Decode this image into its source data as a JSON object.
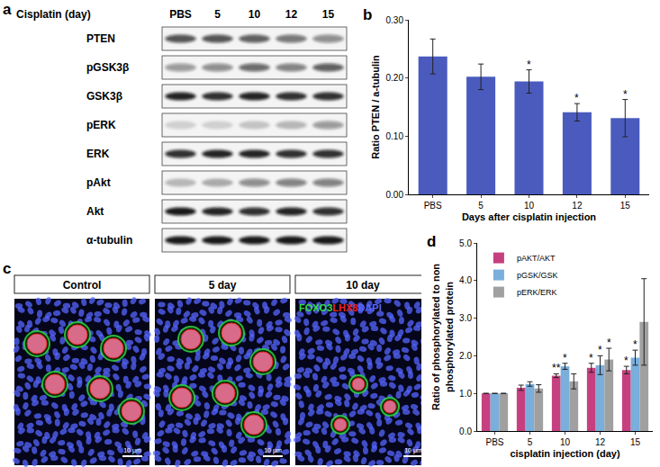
{
  "blot": {
    "label": "a",
    "header": "Cisplatin (day)",
    "lanes": [
      "PBS",
      "5",
      "10",
      "12",
      "15"
    ],
    "rows": [
      {
        "name": "PTEN",
        "intensity": [
          0.7,
          0.7,
          0.65,
          0.55,
          0.45
        ]
      },
      {
        "name": "pGSK3β",
        "intensity": [
          0.4,
          0.45,
          0.6,
          0.5,
          0.65
        ]
      },
      {
        "name": "GSK3β",
        "intensity": [
          0.9,
          0.85,
          0.9,
          0.85,
          0.85
        ]
      },
      {
        "name": "pERK",
        "intensity": [
          0.15,
          0.15,
          0.2,
          0.25,
          0.4
        ]
      },
      {
        "name": "ERK",
        "intensity": [
          0.85,
          0.9,
          0.9,
          0.85,
          0.85
        ]
      },
      {
        "name": "pAkt",
        "intensity": [
          0.25,
          0.3,
          0.45,
          0.5,
          0.5
        ]
      },
      {
        "name": "Akt",
        "intensity": [
          0.95,
          0.9,
          0.85,
          0.9,
          0.85
        ]
      },
      {
        "name": "α-tubulin",
        "intensity": [
          0.95,
          0.95,
          0.95,
          0.95,
          0.95
        ]
      }
    ]
  },
  "microscopy": {
    "label": "c",
    "panels": [
      "Control",
      "5 day",
      "10 day"
    ],
    "stains": [
      {
        "name": "FOXO3",
        "color": "#33dd44"
      },
      {
        "name": "LHX8",
        "color": "#ee2222"
      },
      {
        "name": "DAPI",
        "color": "#5566ff"
      }
    ],
    "scale_bar": "10 μm"
  },
  "chart_data": [
    {
      "label": "b",
      "type": "bar",
      "categories": [
        "PBS",
        "5",
        "10",
        "12",
        "15"
      ],
      "values": [
        0.237,
        0.202,
        0.194,
        0.141,
        0.131
      ],
      "errors": [
        0.03,
        0.022,
        0.02,
        0.015,
        0.032
      ],
      "color": "#4a5bbd",
      "x_label": "Days after cisplatin injection",
      "y_label": "Ratio PTEN / a-tubulin",
      "ylim": [
        0,
        0.3
      ],
      "yticks": [
        {
          "value": 0,
          "label": "0.00"
        },
        {
          "value": 0.1,
          "label": "0.10"
        },
        {
          "value": 0.2,
          "label": "0.20"
        },
        {
          "value": 0.3,
          "label": "0.30"
        }
      ],
      "grid": false,
      "annotations": [
        {
          "category": "10",
          "text": "*"
        },
        {
          "category": "12",
          "text": "*"
        },
        {
          "category": "15",
          "text": "*"
        }
      ]
    },
    {
      "label": "d",
      "type": "bar",
      "categories": [
        "PBS",
        "5",
        "10",
        "12",
        "15"
      ],
      "series": [
        {
          "name": "pAKT/AKT",
          "color": "#c6407f",
          "values": [
            1,
            1.15,
            1.47,
            1.68,
            1.62
          ],
          "errors": [
            0,
            0.07,
            0.05,
            0.12,
            0.1
          ]
        },
        {
          "name": "pGSK/GSK",
          "color": "#7aaedb",
          "values": [
            1,
            1.25,
            1.72,
            1.75,
            1.95
          ],
          "errors": [
            0,
            0.06,
            0.08,
            0.25,
            0.2
          ]
        },
        {
          "name": "pERK/ERK",
          "color": "#a0a0a0",
          "values": [
            1,
            1.13,
            1.32,
            1.9,
            2.9
          ],
          "errors": [
            0,
            0.1,
            0.2,
            0.3,
            1.15
          ]
        }
      ],
      "x_label": "cisplatin injection (day)",
      "y_label": [
        "Ratio of phosphorylated to non",
        "phosphorylated protein"
      ],
      "ylim": [
        0,
        5
      ],
      "yticks": [
        {
          "value": 0,
          "label": "0.0"
        },
        {
          "value": 1,
          "label": "1.0"
        },
        {
          "value": 2,
          "label": "2.0"
        },
        {
          "value": 3,
          "label": "3.0"
        },
        {
          "value": 4,
          "label": "4.0"
        },
        {
          "value": 5,
          "label": "5.0"
        }
      ],
      "grid": false,
      "legend": "upper left",
      "annotations": [
        {
          "category": "10",
          "series": "pAKT/AKT",
          "text": "**"
        },
        {
          "category": "10",
          "series": "pGSK/GSK",
          "text": "*"
        },
        {
          "category": "12",
          "series": "pAKT/AKT",
          "text": "*"
        },
        {
          "category": "12",
          "series": "pGSK/GSK",
          "text": "*"
        },
        {
          "category": "12",
          "series": "pERK/ERK",
          "text": "*"
        },
        {
          "category": "15",
          "series": "pAKT/AKT",
          "text": "*"
        },
        {
          "category": "15",
          "series": "pGSK/GSK",
          "text": "*"
        }
      ]
    }
  ]
}
